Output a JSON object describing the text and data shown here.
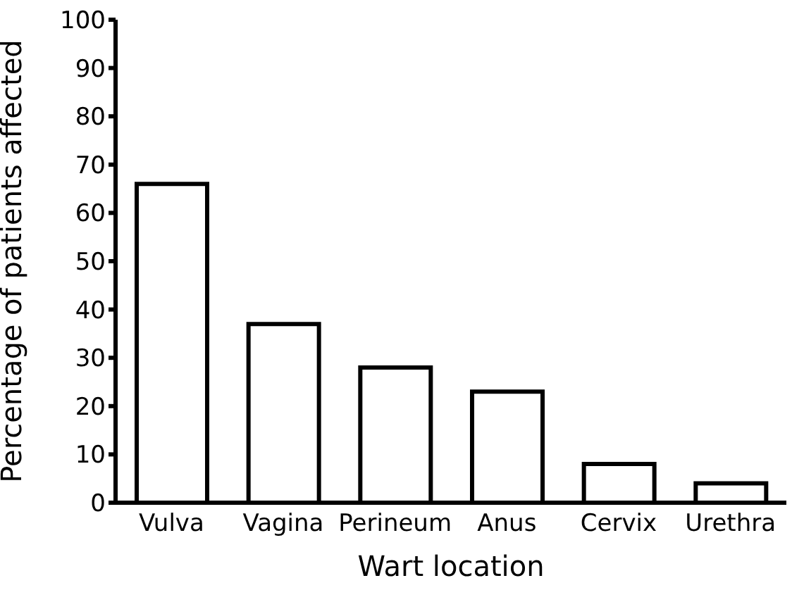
{
  "chart_data": {
    "type": "bar",
    "xlabel": "Wart location",
    "ylabel": "Percentage of patients affected",
    "categories": [
      "Vulva",
      "Vagina",
      "Perineum",
      "Anus",
      "Cervix",
      "Urethra"
    ],
    "values": [
      66,
      37,
      28,
      23,
      8,
      4
    ],
    "color": "#ffffff",
    "ylim": [
      0,
      100
    ],
    "yticks": [
      0,
      10,
      20,
      30,
      40,
      50,
      60,
      70,
      80,
      90,
      100
    ],
    "grid": false,
    "legend": false
  }
}
